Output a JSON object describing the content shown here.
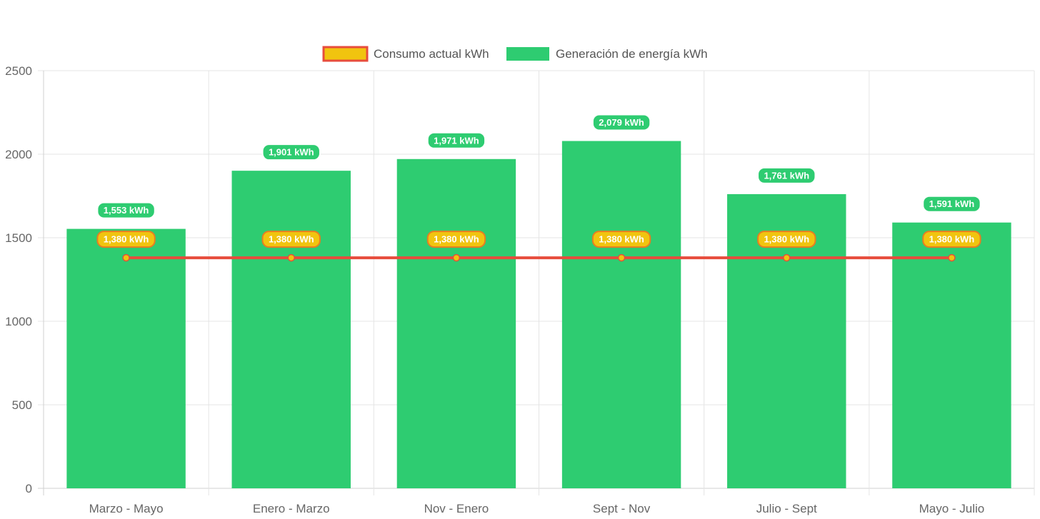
{
  "chart_data": {
    "type": "bar",
    "categories": [
      "Marzo - Mayo",
      "Enero - Marzo",
      "Nov - Enero",
      "Sept - Nov",
      "Julio - Sept",
      "Mayo - Julio"
    ],
    "series": [
      {
        "name": "Consumo actual kWh",
        "type": "line",
        "values": [
          1380,
          1380,
          1380,
          1380,
          1380,
          1380
        ],
        "labels": [
          "1,380 kWh",
          "1,380 kWh",
          "1,380 kWh",
          "1,380 kWh",
          "1,380 kWh",
          "1,380 kWh"
        ],
        "color": "#e74c3c",
        "fill": "#f1c40f"
      },
      {
        "name": "Generación de energía kWh",
        "type": "bar",
        "values": [
          1553,
          1901,
          1971,
          2079,
          1761,
          1591
        ],
        "labels": [
          "1,553 kWh",
          "1,901 kWh",
          "1,971 kWh",
          "2,079 kWh",
          "1,761 kWh",
          "1,591 kWh"
        ],
        "color": "#2ecc71"
      }
    ],
    "yticks": [
      "0",
      "500",
      "1000",
      "1500",
      "2000",
      "2500"
    ],
    "ylim": [
      0,
      2500
    ],
    "xlabel": "",
    "ylabel": "",
    "title": "",
    "grid": true,
    "legend_position": "top-center"
  }
}
